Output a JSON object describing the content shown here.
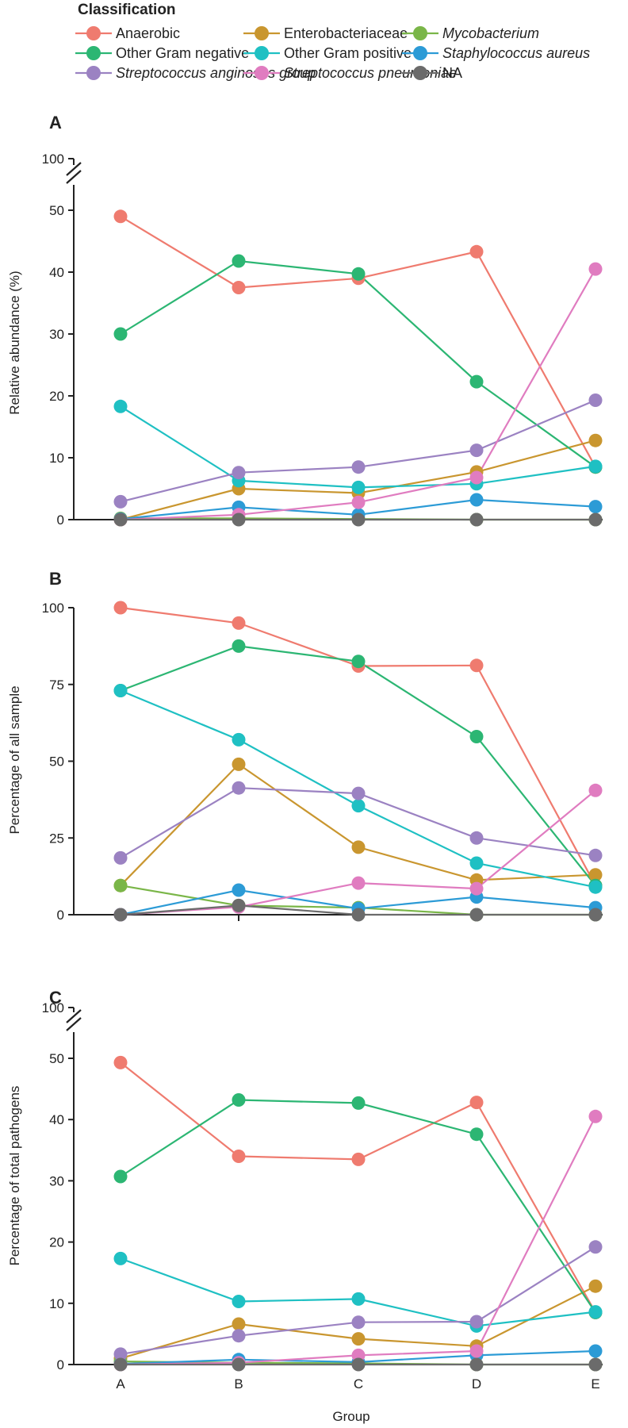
{
  "chart_data": {
    "type": "line",
    "categories": [
      "A",
      "B",
      "C",
      "D",
      "E"
    ],
    "xlabel": "Group",
    "legend": {
      "title": "Classification",
      "placement": "top",
      "entries": [
        {
          "name": "Anaerobic",
          "color": "#ef7b6f",
          "italic": false
        },
        {
          "name": "Enterobacteriaceae",
          "color": "#c9962f",
          "italic": false
        },
        {
          "name": "Mycobacterium",
          "color": "#7ab648",
          "italic": true
        },
        {
          "name": "Other Gram negative",
          "color": "#2cb673",
          "italic": false
        },
        {
          "name": "Other Gram positive",
          "color": "#1fc0c3",
          "italic": false
        },
        {
          "name": "Staphylococcus aureus",
          "color": "#2c9bd6",
          "italic": true
        },
        {
          "name": "Streptococcus anginosus group",
          "color": "#9b82c2",
          "italic": true
        },
        {
          "name": "Streptococcus pneumoniae",
          "color": "#e07cc0",
          "italic": true
        },
        {
          "name": "NA",
          "color": "#6b6b6b",
          "italic": false
        }
      ]
    },
    "panels": [
      {
        "id": "A",
        "letter": "A",
        "ylabel": "Relative abundance (%)",
        "ylim": [
          0,
          50
        ],
        "yticks": [
          0,
          10,
          20,
          30,
          40,
          50
        ],
        "axis_break": true,
        "break_top_value": 100,
        "break_top_label": "100",
        "series": [
          {
            "name": "Anaerobic",
            "values": [
              49,
              37.5,
              39,
              43.3,
              8.5
            ]
          },
          {
            "name": "Enterobacteriaceae",
            "values": [
              0,
              5,
              4.3,
              7.7,
              12.8
            ]
          },
          {
            "name": "Mycobacterium",
            "values": [
              0.2,
              0.2,
              0.1,
              0,
              0
            ]
          },
          {
            "name": "Other Gram negative",
            "values": [
              30,
              41.8,
              39.7,
              22.3,
              8.5
            ]
          },
          {
            "name": "Other Gram positive",
            "values": [
              18.3,
              6.3,
              5.2,
              5.8,
              8.6
            ]
          },
          {
            "name": "Staphylococcus aureus",
            "values": [
              0.1,
              2,
              0.8,
              3.2,
              2.1
            ]
          },
          {
            "name": "Streptococcus anginosus group",
            "values": [
              2.9,
              7.6,
              8.5,
              11.2,
              19.3
            ]
          },
          {
            "name": "Streptococcus pneumoniae",
            "values": [
              0,
              0.8,
              2.8,
              6.8,
              40.5
            ]
          },
          {
            "name": "NA",
            "values": [
              0,
              0,
              0,
              0,
              0
            ]
          }
        ]
      },
      {
        "id": "B",
        "letter": "B",
        "ylabel": "Percentage of all sample",
        "ylim": [
          0,
          100
        ],
        "yticks": [
          0,
          25,
          50,
          75,
          100
        ],
        "axis_break": false,
        "series": [
          {
            "name": "Anaerobic",
            "values": [
              100,
              95,
              81,
              81.2,
              9.5
            ]
          },
          {
            "name": "Enterobacteriaceae",
            "values": [
              9.5,
              49,
              22,
              11.3,
              13
            ]
          },
          {
            "name": "Mycobacterium",
            "values": [
              9.5,
              3,
              2.3,
              0,
              0
            ]
          },
          {
            "name": "Other Gram negative",
            "values": [
              73,
              87.5,
              82.5,
              58,
              9.5
            ]
          },
          {
            "name": "Other Gram positive",
            "values": [
              73,
              57,
              35.5,
              16.8,
              9
            ]
          },
          {
            "name": "Staphylococcus aureus",
            "values": [
              0,
              8,
              2,
              5.8,
              2.3
            ]
          },
          {
            "name": "Streptococcus anginosus group",
            "values": [
              18.5,
              41.3,
              39.5,
              25,
              19.3
            ]
          },
          {
            "name": "Streptococcus pneumoniae",
            "values": [
              0,
              2.5,
              10.3,
              8.5,
              40.5
            ]
          },
          {
            "name": "NA",
            "values": [
              0,
              3,
              0,
              0,
              0
            ]
          }
        ]
      },
      {
        "id": "C",
        "letter": "C",
        "ylabel": "Percentage of total pathogens",
        "ylim": [
          0,
          50
        ],
        "yticks": [
          0,
          10,
          20,
          30,
          40,
          50
        ],
        "axis_break": true,
        "break_top_value": 100,
        "break_top_label": "100",
        "series": [
          {
            "name": "Anaerobic",
            "values": [
              49.3,
              34,
              33.5,
              42.8,
              8.5
            ]
          },
          {
            "name": "Enterobacteriaceae",
            "values": [
              1,
              6.6,
              4.2,
              3,
              12.8
            ]
          },
          {
            "name": "Mycobacterium",
            "values": [
              0.5,
              0.3,
              0.2,
              0,
              0
            ]
          },
          {
            "name": "Other Gram negative",
            "values": [
              30.7,
              43.2,
              42.7,
              37.6,
              8.5
            ]
          },
          {
            "name": "Other Gram positive",
            "values": [
              17.3,
              10.3,
              10.7,
              6.3,
              8.6
            ]
          },
          {
            "name": "Staphylococcus aureus",
            "values": [
              0.1,
              0.8,
              0.4,
              1.5,
              2.2
            ]
          },
          {
            "name": "Streptococcus anginosus group",
            "values": [
              1.7,
              4.7,
              6.9,
              7,
              19.2
            ]
          },
          {
            "name": "Streptococcus pneumoniae",
            "values": [
              0,
              0.3,
              1.5,
              2.2,
              40.5
            ]
          },
          {
            "name": "NA",
            "values": [
              0,
              0,
              0,
              0,
              0
            ]
          }
        ]
      }
    ]
  }
}
